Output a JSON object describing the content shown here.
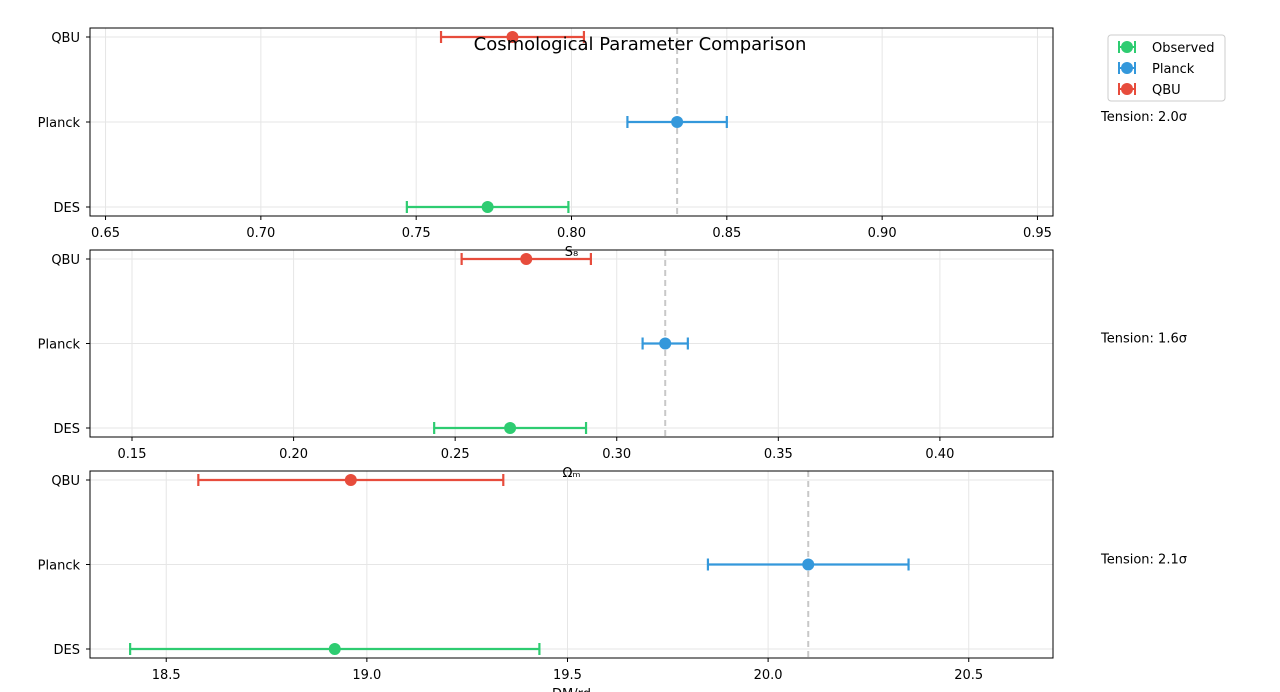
{
  "chart_data": {
    "type": "errorbar",
    "title": "Cosmological Parameter Comparison",
    "legend": {
      "placement": "top-right",
      "entries": [
        {
          "label": "Observed",
          "color": "#2ecc71"
        },
        {
          "label": "Planck",
          "color": "#3498db"
        },
        {
          "label": "QBU",
          "color": "#e74c3c"
        }
      ]
    },
    "grid": true,
    "panels": [
      {
        "xlabel": "S₈",
        "xlim": [
          0.645,
          0.955
        ],
        "xticks": [
          "0.65",
          "0.70",
          "0.75",
          "0.80",
          "0.85",
          "0.90",
          "0.95"
        ],
        "categories": [
          "DES",
          "Planck",
          "QBU"
        ],
        "reference_line": 0.834,
        "tension": "Tension: 2.0σ",
        "points": [
          {
            "category": "DES",
            "value": 0.773,
            "err": 0.026,
            "color": "#2ecc71"
          },
          {
            "category": "Planck",
            "value": 0.834,
            "err": 0.016,
            "color": "#3498db"
          },
          {
            "category": "QBU",
            "value": 0.781,
            "err": 0.023,
            "color": "#e74c3c"
          }
        ]
      },
      {
        "xlabel": "Ωₘ",
        "xlim": [
          0.137,
          0.435
        ],
        "xticks": [
          "0.15",
          "0.20",
          "0.25",
          "0.30",
          "0.35",
          "0.40"
        ],
        "categories": [
          "DES",
          "Planck",
          "QBU"
        ],
        "reference_line": 0.315,
        "tension": "Tension: 1.6σ",
        "points": [
          {
            "category": "DES",
            "value": 0.267,
            "err": 0.0235,
            "color": "#2ecc71"
          },
          {
            "category": "Planck",
            "value": 0.315,
            "err": 0.007,
            "color": "#3498db"
          },
          {
            "category": "QBU",
            "value": 0.272,
            "err": 0.02,
            "color": "#e74c3c"
          }
        ]
      },
      {
        "xlabel": "DM/rd",
        "xlim": [
          18.31,
          20.71
        ],
        "xticks": [
          "18.5",
          "19.0",
          "19.5",
          "20.0",
          "20.5"
        ],
        "categories": [
          "DES",
          "Planck",
          "QBU"
        ],
        "reference_line": 20.1,
        "tension": "Tension: 2.1σ",
        "points": [
          {
            "category": "DES",
            "value": 18.92,
            "err": 0.51,
            "color": "#2ecc71"
          },
          {
            "category": "Planck",
            "value": 20.1,
            "err": 0.25,
            "color": "#3498db"
          },
          {
            "category": "QBU",
            "value": 18.96,
            "err": 0.38,
            "color": "#e74c3c"
          }
        ]
      }
    ]
  }
}
